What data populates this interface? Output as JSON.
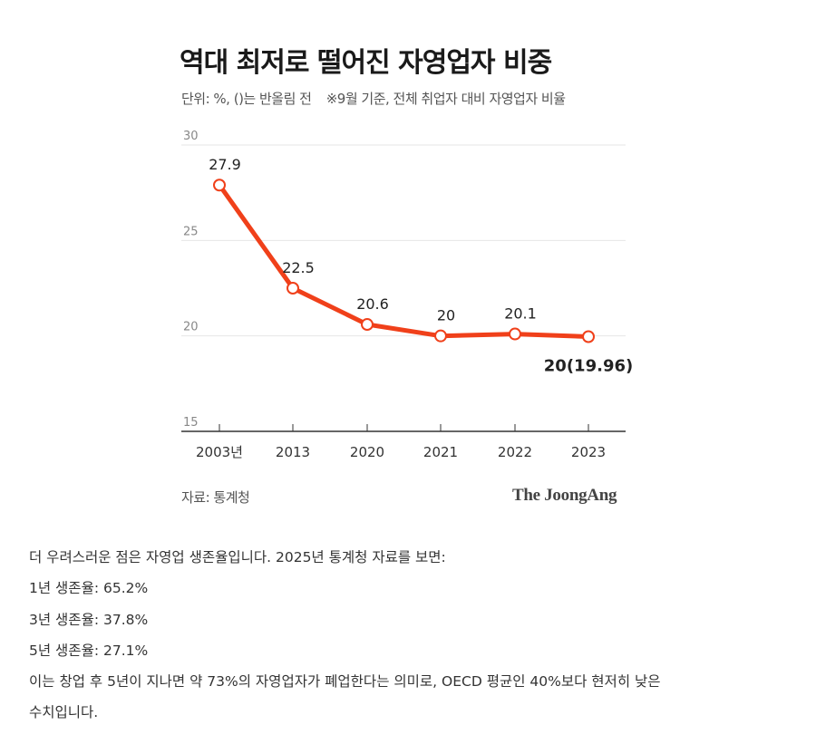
{
  "figure": {
    "title": "역대 최저로 떨어진 자영업자 비중",
    "unit_note": "단위: %, ()는 반올림 전",
    "basis_note": "※9월 기준, 전체 취업자 대비 자영업자 비율",
    "source": "자료: 통계청",
    "logo": "The JoongAng"
  },
  "chart_data": {
    "type": "line",
    "title": "역대 최저로 떨어진 자영업자 비중",
    "categories": [
      "2003년",
      "2013",
      "2020",
      "2021",
      "2022",
      "2023"
    ],
    "values": [
      27.9,
      22.5,
      20.6,
      20.0,
      20.1,
      19.96
    ],
    "data_labels": [
      "27.9",
      "22.5",
      "20.6",
      "20",
      "20.1",
      "20(19.96)"
    ],
    "y_ticks": [
      "30",
      "25",
      "20",
      "15"
    ],
    "ylim": [
      15,
      30
    ],
    "grid": true,
    "xlabel": "",
    "ylabel": "",
    "colors": {
      "line": "#F0401A",
      "marker_fill": "#ffffff",
      "grid": "#e6e6e6",
      "axis": "#333333"
    }
  },
  "body": {
    "lines": [
      "더 우려스러운 점은 자영업 생존율입니다. 2025년 통계청 자료를 보면:",
      "1년 생존율: 65.2%",
      "3년 생존율: 37.8%",
      "5년 생존율: 27.1%",
      "이는 창업 후 5년이 지나면 약 73%의 자영업자가 폐업한다는 의미로, OECD 평균인 40%보다 현저히 낮은",
      "수치입니다."
    ]
  }
}
